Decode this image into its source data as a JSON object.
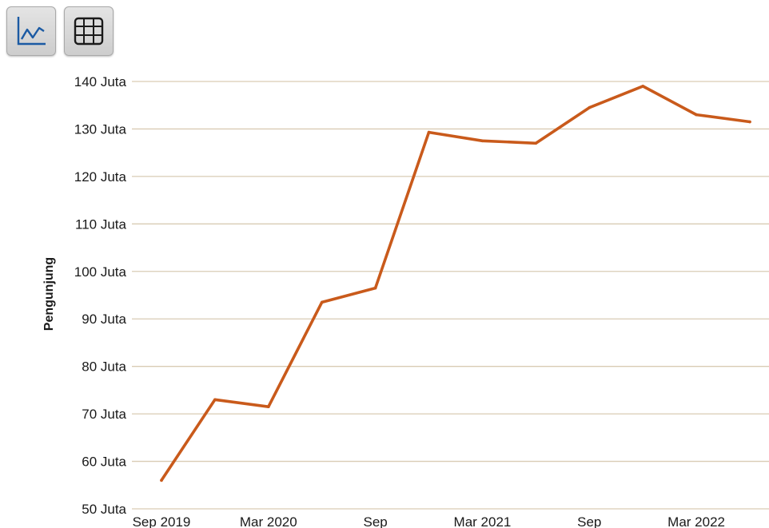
{
  "toolbar": {
    "buttons": [
      {
        "icon": "line-chart-icon",
        "label": ""
      },
      {
        "icon": "table-grid-icon",
        "label": ""
      }
    ]
  },
  "colors": {
    "line": "#c95a1b",
    "grid": "#d9ccb4",
    "icon_line": "#1b5aa3"
  },
  "chart_data": {
    "type": "line",
    "title": "",
    "xlabel": "",
    "ylabel": "Pengunjung",
    "ylim": [
      50000000,
      140000000
    ],
    "y_ticks": [
      {
        "value": 50000000,
        "label": "50 Juta"
      },
      {
        "value": 60000000,
        "label": "60 Juta"
      },
      {
        "value": 70000000,
        "label": "70 Juta"
      },
      {
        "value": 80000000,
        "label": "80 Juta"
      },
      {
        "value": 90000000,
        "label": "90 Juta"
      },
      {
        "value": 100000000,
        "label": "100 Juta"
      },
      {
        "value": 110000000,
        "label": "110 Juta"
      },
      {
        "value": 120000000,
        "label": "120 Juta"
      },
      {
        "value": 130000000,
        "label": "130 Juta"
      },
      {
        "value": 140000000,
        "label": "140 Juta"
      }
    ],
    "x_ticks": [
      {
        "value": "2019-09",
        "label": "Sep 2019"
      },
      {
        "value": "2020-03",
        "label": "Mar 2020"
      },
      {
        "value": "2020-09",
        "label": "Sep"
      },
      {
        "value": "2021-03",
        "label": "Mar 2021"
      },
      {
        "value": "2021-09",
        "label": "Sep"
      },
      {
        "value": "2022-03",
        "label": "Mar 2022"
      }
    ],
    "xlim": [
      "2019-09",
      "2022-06"
    ],
    "grid": "horizontal",
    "series": [
      {
        "x": [
          "2019-09",
          "2019-12",
          "2020-03",
          "2020-06",
          "2020-09",
          "2020-12",
          "2021-03",
          "2021-06",
          "2021-09",
          "2021-12",
          "2022-03",
          "2022-06"
        ],
        "values": [
          56000000,
          73000000,
          71500000,
          93500000,
          96500000,
          129300000,
          127500000,
          127000000,
          134500000,
          139000000,
          133000000,
          131500000
        ]
      }
    ]
  }
}
